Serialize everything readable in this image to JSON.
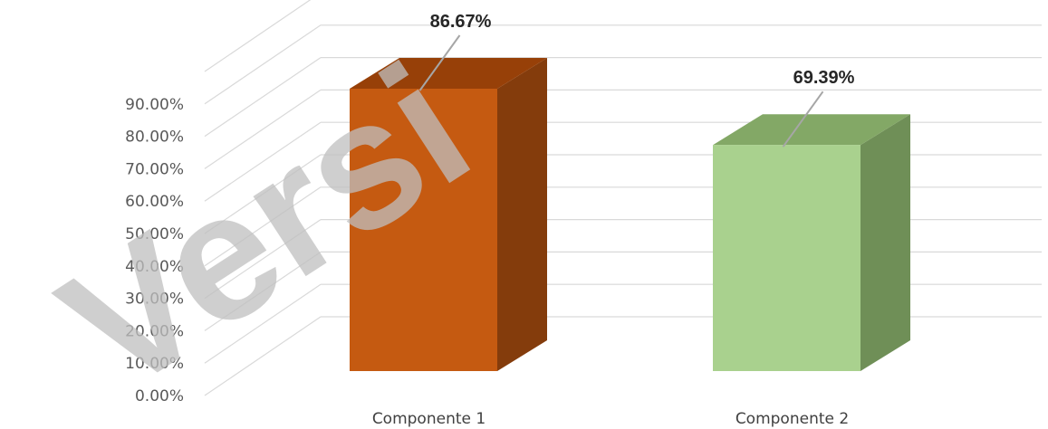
{
  "watermark": "Versi",
  "chart_data": {
    "type": "bar",
    "categories": [
      "Componente 1",
      "Componente 2"
    ],
    "values": [
      86.67,
      69.39
    ],
    "data_labels": [
      "86.67%",
      "69.39%"
    ],
    "colors": {
      "bar_front": [
        "#c55a11",
        "#a9d18e"
      ],
      "bar_top": [
        "#974008",
        "#83a866"
      ],
      "bar_side": [
        "#843c0c",
        "#6f8f57"
      ]
    },
    "yticks": [
      "0.00%",
      "10.00%",
      "20.00%",
      "30.00%",
      "40.00%",
      "50.00%",
      "60.00%",
      "70.00%",
      "80.00%",
      "90.00%"
    ],
    "ylim": [
      0,
      100
    ],
    "grid": true,
    "chart_style": "3d-column"
  }
}
